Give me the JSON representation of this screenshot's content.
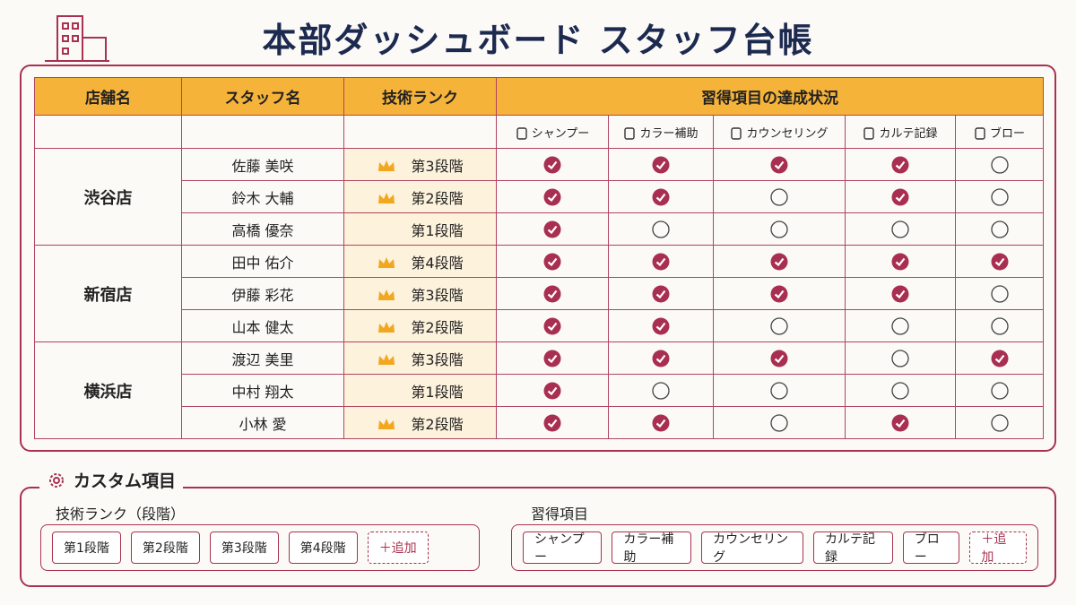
{
  "header": {
    "title": "本部ダッシュボード スタッフ台帳"
  },
  "table": {
    "headers": [
      "店舗名",
      "スタッフ名",
      "技術ランク",
      "習得項目の達成状況"
    ],
    "skills": [
      "シャンプー",
      "カラー補助",
      "カウンセリング",
      "カルテ記録",
      "ブロー"
    ],
    "stores": [
      {
        "store": "渋谷店",
        "staff": [
          {
            "name": "佐藤 美咲",
            "rank": "第3段階",
            "crown": true,
            "skills": [
              true,
              true,
              true,
              true,
              false
            ]
          },
          {
            "name": "鈴木 大輔",
            "rank": "第2段階",
            "crown": true,
            "skills": [
              true,
              true,
              false,
              true,
              false
            ]
          },
          {
            "name": "高橋 優奈",
            "rank": "第1段階",
            "crown": false,
            "skills": [
              true,
              false,
              false,
              false,
              false
            ]
          }
        ]
      },
      {
        "store": "新宿店",
        "staff": [
          {
            "name": "田中 佑介",
            "rank": "第4段階",
            "crown": true,
            "skills": [
              true,
              true,
              true,
              true,
              true
            ]
          },
          {
            "name": "伊藤 彩花",
            "rank": "第3段階",
            "crown": true,
            "skills": [
              true,
              true,
              true,
              true,
              false
            ]
          },
          {
            "name": "山本 健太",
            "rank": "第2段階",
            "crown": true,
            "skills": [
              true,
              true,
              false,
              false,
              false
            ]
          }
        ]
      },
      {
        "store": "横浜店",
        "staff": [
          {
            "name": "渡辺 美里",
            "rank": "第3段階",
            "crown": true,
            "skills": [
              true,
              true,
              true,
              false,
              true
            ]
          },
          {
            "name": "中村 翔太",
            "rank": "第1段階",
            "crown": false,
            "skills": [
              true,
              false,
              false,
              false,
              false
            ]
          },
          {
            "name": "小林 愛",
            "rank": "第2段階",
            "crown": true,
            "skills": [
              true,
              true,
              false,
              true,
              false
            ]
          }
        ]
      }
    ]
  },
  "custom": {
    "title": "カスタム項目",
    "rank_group": {
      "label": "技術ランク（段階）",
      "chips": [
        "第1段階",
        "第2段階",
        "第3段階",
        "第4段階"
      ],
      "add": "＋追加"
    },
    "skill_group": {
      "label": "習得項目",
      "chips": [
        "シャンプー",
        "カラー補助",
        "カウンセリング",
        "カルテ記録",
        "ブロー"
      ],
      "add": "＋追加"
    }
  }
}
